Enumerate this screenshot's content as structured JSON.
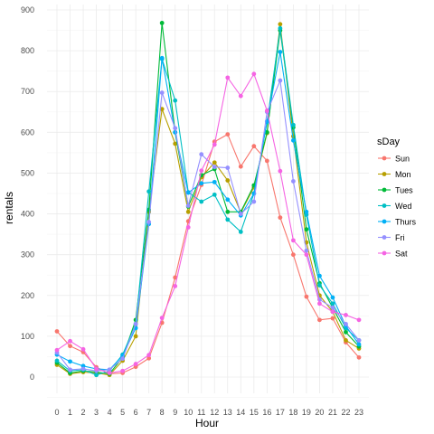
{
  "chart_data": {
    "type": "line",
    "xlabel": "Hour",
    "ylabel": "rentals",
    "xlim": [
      0,
      23
    ],
    "ylim": [
      -40,
      910
    ],
    "x": [
      0,
      1,
      2,
      3,
      4,
      5,
      6,
      7,
      8,
      9,
      10,
      11,
      12,
      13,
      14,
      15,
      16,
      17,
      18,
      19,
      20,
      21,
      22,
      23
    ],
    "x_ticks": [
      "0",
      "1",
      "2",
      "3",
      "4",
      "5",
      "6",
      "7",
      "8",
      "9",
      "10",
      "11",
      "12",
      "13",
      "14",
      "15",
      "16",
      "17",
      "18",
      "19",
      "20",
      "21",
      "22",
      "23"
    ],
    "y_ticks": [
      "0",
      "100",
      "200",
      "300",
      "400",
      "500",
      "600",
      "700",
      "800",
      "900"
    ],
    "y_tick_values": [
      0,
      100,
      200,
      300,
      400,
      500,
      600,
      700,
      800,
      900
    ],
    "grid": true,
    "legend": {
      "title": "sDay",
      "position": "right"
    },
    "series": [
      {
        "name": "Sun",
        "color": "#F8766D",
        "values": [
          112,
          76,
          61,
          24,
          8,
          10,
          25,
          46,
          133,
          244,
          382,
          471,
          577,
          595,
          516,
          566,
          530,
          391,
          300,
          197,
          140,
          144,
          85,
          48
        ]
      },
      {
        "name": "Mon",
        "color": "#B79F00",
        "values": [
          30,
          8,
          12,
          10,
          5,
          40,
          100,
          405,
          657,
          572,
          405,
          490,
          526,
          482,
          403,
          465,
          598,
          865,
          590,
          330,
          200,
          160,
          90,
          70
        ]
      },
      {
        "name": "Tues",
        "color": "#00BA38",
        "values": [
          35,
          10,
          15,
          12,
          8,
          48,
          140,
          410,
          868,
          600,
          418,
          495,
          510,
          405,
          405,
          470,
          600,
          850,
          612,
          362,
          230,
          170,
          110,
          75
        ]
      },
      {
        "name": "Wed",
        "color": "#00BFC4",
        "values": [
          40,
          15,
          18,
          5,
          15,
          55,
          130,
          455,
          780,
          678,
          453,
          430,
          447,
          386,
          356,
          450,
          625,
          855,
          618,
          398,
          225,
          180,
          120,
          90
        ]
      },
      {
        "name": "Thurs",
        "color": "#00B0F6",
        "values": [
          55,
          38,
          27,
          20,
          18,
          52,
          120,
          375,
          782,
          600,
          452,
          475,
          478,
          435,
          396,
          450,
          627,
          797,
          580,
          405,
          248,
          195,
          125,
          80
        ]
      },
      {
        "name": "Fri",
        "color": "#9590FF",
        "values": [
          60,
          18,
          20,
          15,
          18,
          45,
          130,
          380,
          697,
          610,
          420,
          546,
          515,
          513,
          400,
          430,
          650,
          727,
          480,
          310,
          190,
          170,
          130,
          90
        ]
      },
      {
        "name": "Sat",
        "color": "#F564E3",
        "values": [
          66,
          88,
          68,
          20,
          10,
          15,
          32,
          54,
          145,
          223,
          367,
          506,
          570,
          734,
          689,
          743,
          653,
          505,
          335,
          300,
          180,
          160,
          152,
          140
        ]
      }
    ]
  }
}
